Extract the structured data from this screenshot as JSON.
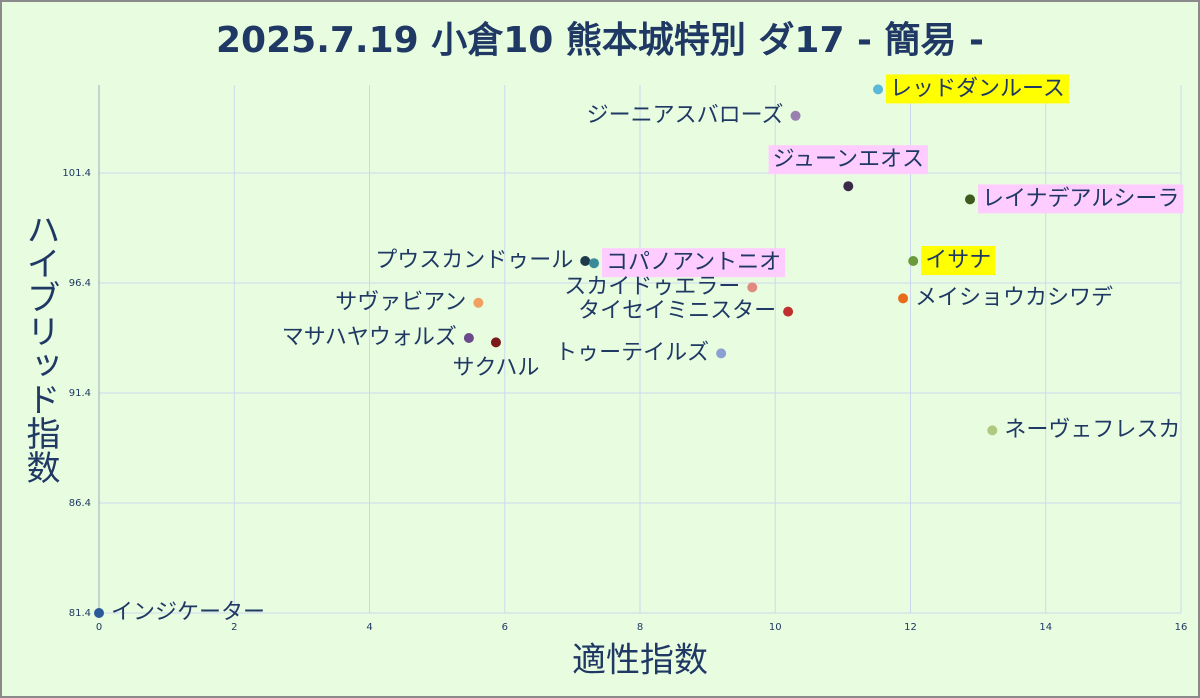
{
  "chart_data": {
    "type": "scatter",
    "title": "2025.7.19 小倉10 熊本城特別 ダ17 - 簡易 -",
    "xlabel": "適性指数",
    "ylabel": "ハイブリッド指数",
    "xlim": [
      0,
      16
    ],
    "ylim": [
      81.4,
      105.4
    ],
    "xticks": [
      0,
      2,
      4,
      6,
      8,
      10,
      12,
      14,
      16
    ],
    "yticks": [
      81.4,
      86.4,
      91.4,
      96.4,
      101.4
    ],
    "grid": true,
    "series": [
      {
        "name": "レッドダンルース",
        "color": "#5bb8d8",
        "x": 11.52,
        "y": 105.2,
        "highlight": "#ffff00"
      },
      {
        "name": "ジーニアスバローズ",
        "color": "#9a7fb0",
        "x": 10.3,
        "y": 104.0
      },
      {
        "name": "ジューンエオス",
        "color": "#3a2a4a",
        "x": 11.08,
        "y": 100.8,
        "highlight": "#ffccff"
      },
      {
        "name": "レイナデアルシーラ",
        "color": "#3f5a1e",
        "x": 12.88,
        "y": 100.2,
        "highlight": "#ffccff"
      },
      {
        "name": "イサナ",
        "color": "#6a9a3a",
        "x": 12.04,
        "y": 97.4,
        "highlight": "#ffff00"
      },
      {
        "name": "メイショウカシワデ",
        "color": "#e86a1a",
        "x": 11.89,
        "y": 95.7
      },
      {
        "name": "プウスカンドゥール",
        "color": "#1e3a4a",
        "x": 7.19,
        "y": 97.4
      },
      {
        "name": "コパノアントニオ",
        "color": "#3a8a9a",
        "x": 7.32,
        "y": 97.3,
        "highlight": "#ffccff"
      },
      {
        "name": "スカイドゥエラー",
        "color": "#e08a80",
        "x": 9.66,
        "y": 96.2
      },
      {
        "name": "タイセイミニスター",
        "color": "#c03030",
        "x": 10.19,
        "y": 95.1
      },
      {
        "name": "サヴァビアン",
        "color": "#f0a060",
        "x": 5.61,
        "y": 95.5
      },
      {
        "name": "マサハヤウォルズ",
        "color": "#6a4a8a",
        "x": 5.47,
        "y": 93.9
      },
      {
        "name": "サクハル",
        "color": "#7a1a1a",
        "x": 5.87,
        "y": 93.7
      },
      {
        "name": "トゥーテイルズ",
        "color": "#8aa0d0",
        "x": 9.2,
        "y": 93.2
      },
      {
        "name": "ネーヴェフレスカ",
        "color": "#b0c880",
        "x": 13.21,
        "y": 89.7
      },
      {
        "name": "インジケーター",
        "color": "#2a5a9a",
        "x": 0,
        "y": 81.4
      }
    ]
  }
}
